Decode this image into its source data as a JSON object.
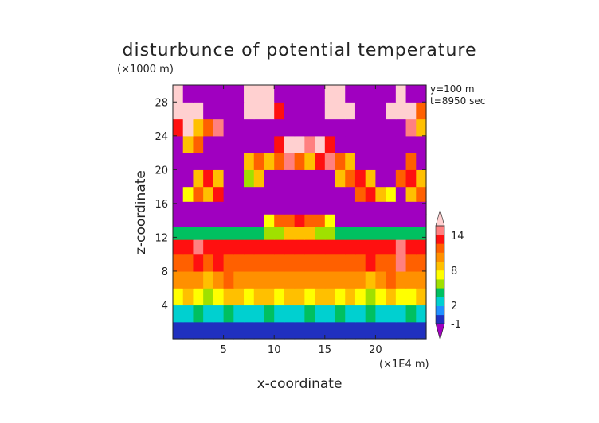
{
  "chart_data": {
    "type": "heatmap",
    "title": "disturbunce of potential temperature",
    "xlabel": "x-coordinate",
    "ylabel": "z-coordinate",
    "x_unit": "(×1E4 m)",
    "y_unit": "(×1000 m)",
    "annotations": [
      "y=100 m",
      "t=8950 sec"
    ],
    "xlim": [
      0,
      25
    ],
    "ylim": [
      0,
      30
    ],
    "x_ticks": [
      5,
      10,
      15,
      20
    ],
    "y_ticks": [
      4,
      8,
      12,
      16,
      20,
      24,
      28
    ],
    "colorbar": {
      "labels": [
        14,
        8,
        2,
        -1
      ],
      "extend": "both",
      "colors": [
        "#a000c0",
        "#2030c0",
        "#2090ff",
        "#00d0d0",
        "#00c060",
        "#a0e000",
        "#ffff00",
        "#ffc000",
        "#ff9000",
        "#ff6000",
        "#ff1010",
        "#ff8080",
        "#ffd0d0"
      ]
    },
    "field": {
      "x": [
        0.5,
        1.5,
        2.5,
        3.5,
        4.5,
        5.5,
        6.5,
        7.5,
        8.5,
        9.5,
        10.5,
        11.5,
        12.5,
        13.5,
        14.5,
        15.5,
        16.5,
        17.5,
        18.5,
        19.5,
        20.5,
        21.5,
        22.5,
        23.5,
        24.5
      ],
      "z": [
        1,
        3,
        5,
        7,
        9,
        11,
        12.5,
        14,
        15.5,
        17,
        19,
        21,
        23,
        25,
        27,
        29
      ],
      "values": [
        [
          -1.5,
          -1.5,
          -1.5,
          -1.5,
          -1.5,
          -1.5,
          -2,
          -2,
          -2,
          -2,
          -2,
          -2,
          -2,
          -2,
          -2,
          -2,
          -2,
          -2,
          -2,
          -1.5,
          -1.5,
          -1.5,
          -1.5,
          -1.5,
          -1.5
        ],
        [
          0,
          0.5,
          1,
          0,
          0.5,
          1,
          0.5,
          0,
          0.5,
          1,
          0.5,
          0,
          0.5,
          1,
          0.5,
          0,
          1,
          0.5,
          0,
          1,
          0.5,
          0,
          0.5,
          1,
          0.5
        ],
        [
          4,
          5,
          4,
          3,
          4,
          6,
          5,
          4,
          5,
          5,
          4,
          5,
          5,
          4,
          5,
          5,
          4,
          5,
          4,
          3,
          4,
          5,
          4,
          4,
          5
        ],
        [
          7,
          7,
          7,
          6,
          7,
          8,
          7,
          7,
          7,
          7,
          7,
          7,
          7,
          7,
          7,
          7,
          7,
          7,
          7,
          6,
          7,
          8,
          7,
          7,
          7
        ],
        [
          9,
          9,
          11,
          9,
          10,
          9,
          9,
          8,
          9,
          9,
          9,
          8,
          9,
          9,
          9,
          9,
          8,
          9,
          9,
          11,
          9,
          9,
          12,
          9,
          9
        ],
        [
          11,
          11,
          12,
          10,
          11,
          10,
          10,
          10,
          10,
          10,
          10,
          10,
          10,
          10,
          10,
          10,
          10,
          10,
          10,
          11,
          10,
          10,
          12,
          11,
          11
        ],
        [
          1,
          1,
          1,
          1,
          1,
          1,
          1,
          1,
          1,
          2,
          3,
          6,
          6,
          6,
          3,
          2,
          1,
          1,
          1,
          1,
          1,
          1,
          1,
          1,
          1
        ],
        [
          -3,
          -3,
          -3,
          -3,
          -3,
          -3,
          -3,
          -3,
          -3,
          4,
          8,
          9,
          10,
          9,
          8,
          4,
          -3,
          -3,
          -3,
          -3,
          -3,
          -3,
          -3,
          -3,
          -3
        ],
        [
          -3,
          -3,
          -3,
          -3,
          -3,
          -3,
          -3,
          -3,
          -3,
          -3,
          -3,
          -3,
          -3,
          -3,
          -3,
          -3,
          -3,
          -3,
          -3,
          -3,
          -3,
          -3,
          -3,
          -3,
          -3
        ],
        [
          -3,
          4,
          9,
          6,
          10,
          -3,
          -3,
          -3,
          -3,
          -3,
          -3,
          -3,
          -3,
          -3,
          -3,
          -3,
          -3,
          -3,
          8,
          10,
          6,
          4,
          -3,
          6,
          8
        ],
        [
          -3,
          -3,
          5,
          10,
          6,
          -3,
          -3,
          3,
          6,
          -3,
          -3,
          -3,
          -3,
          -3,
          -3,
          -3,
          5,
          8,
          10,
          6,
          -3,
          -3,
          8,
          10,
          6
        ],
        [
          -3,
          -3,
          -3,
          -3,
          -3,
          -3,
          -3,
          5,
          8,
          6,
          9,
          12,
          8,
          6,
          10,
          12,
          8,
          6,
          -3,
          -3,
          -3,
          -3,
          -3,
          8,
          -3
        ],
        [
          -3,
          5,
          8,
          -3,
          -3,
          -3,
          -3,
          -3,
          -3,
          -3,
          10,
          14,
          15,
          13,
          14,
          10,
          -3,
          -3,
          -3,
          -3,
          -3,
          -3,
          -3,
          -3,
          -3
        ],
        [
          10,
          14,
          6,
          8,
          12,
          -3,
          -3,
          -3,
          -3,
          -3,
          -3,
          -3,
          -3,
          -3,
          -3,
          -3,
          -3,
          -3,
          -3,
          -3,
          -3,
          -3,
          -3,
          12,
          6
        ],
        [
          14,
          15,
          15,
          -3,
          -3,
          -3,
          -3,
          15,
          16,
          15,
          10,
          -3,
          -3,
          -3,
          -3,
          15,
          16,
          15,
          -3,
          -3,
          -3,
          14,
          15,
          15,
          8
        ],
        [
          16,
          -3,
          -3,
          -3,
          -3,
          -3,
          -3,
          16,
          16,
          15,
          -3,
          -3,
          -3,
          -3,
          -3,
          16,
          16,
          -3,
          -3,
          -3,
          -3,
          -3,
          16,
          -3,
          -3
        ]
      ]
    }
  }
}
